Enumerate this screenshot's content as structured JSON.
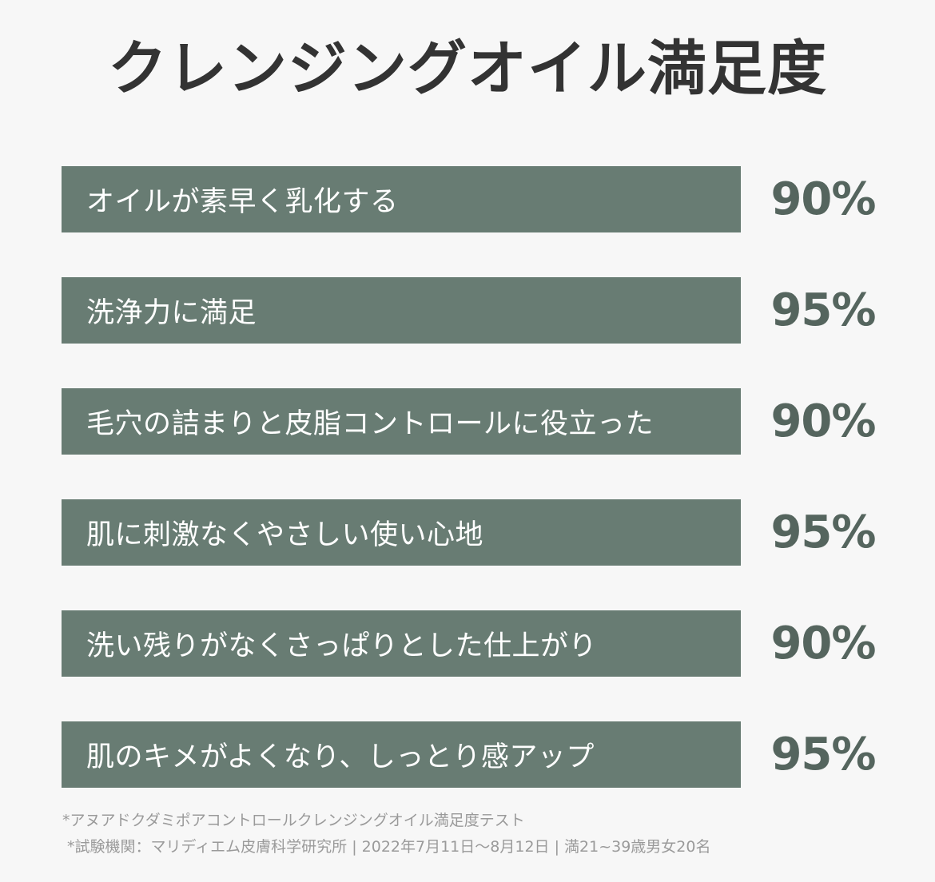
{
  "title": "クレンジングオイル満足度",
  "colors": {
    "bar": "#687c73",
    "value_text": "#55655e",
    "title_text": "#333333",
    "background": "#f7f7f7",
    "footnote_text": "#9a9a9a"
  },
  "chart_data": {
    "type": "table",
    "title": "クレンジングオイル満足度",
    "categories": [
      "オイルが素早く乳化する",
      "洗浄力に満足",
      "毛穴の詰まりと皮脂コントロールに役立った",
      "肌に刺激なくやさしい使い心地",
      "洗い残りがなくさっぱりとした仕上がり",
      "肌のキメがよくなり、しっとり感アップ"
    ],
    "values": [
      90,
      95,
      90,
      95,
      90,
      95
    ],
    "value_labels": [
      "90%",
      "95%",
      "90%",
      "95%",
      "90%",
      "95%"
    ],
    "unit": "%"
  },
  "footnotes": [
    "*アヌアドクダミポアコントロールクレンジングオイル満足度テスト",
    "*試験機関：マリディエム皮膚科学研究所 | 2022年7月11日〜8月12日 | 満21~39歳男女20名"
  ]
}
